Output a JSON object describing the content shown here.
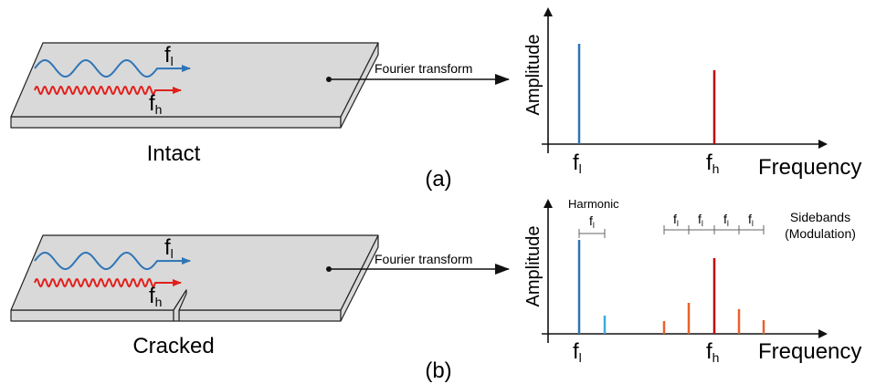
{
  "panels": [
    {
      "label": "(a)",
      "plate_label": "Intact",
      "wave_labels": [
        {
          "base": "f",
          "sub": "l"
        },
        {
          "base": "f",
          "sub": "h"
        }
      ],
      "arrow_label": "Fourier transform",
      "y_axis_label": "Amplitude",
      "x_axis_label": "Frequency",
      "peak_labels": [
        {
          "base": "f",
          "sub": "l"
        },
        {
          "base": "f",
          "sub": "h"
        }
      ]
    },
    {
      "label": "(b)",
      "plate_label": "Cracked",
      "wave_labels": [
        {
          "base": "f",
          "sub": "l"
        },
        {
          "base": "f",
          "sub": "h"
        }
      ],
      "arrow_label": "Fourier transform",
      "y_axis_label": "Amplitude",
      "x_axis_label": "Frequency",
      "peak_labels": [
        {
          "base": "f",
          "sub": "l"
        },
        {
          "base": "f",
          "sub": "h"
        }
      ],
      "harmonic_label": "Harmonic",
      "harmonic_spacing": {
        "base": "f",
        "sub": "l"
      },
      "sideband_spacings": [
        {
          "base": "f",
          "sub": "l"
        },
        {
          "base": "f",
          "sub": "l"
        },
        {
          "base": "f",
          "sub": "l"
        },
        {
          "base": "f",
          "sub": "l"
        }
      ],
      "sidebands_label": "Sidebands",
      "modulation_label": "(Modulation)"
    }
  ]
}
